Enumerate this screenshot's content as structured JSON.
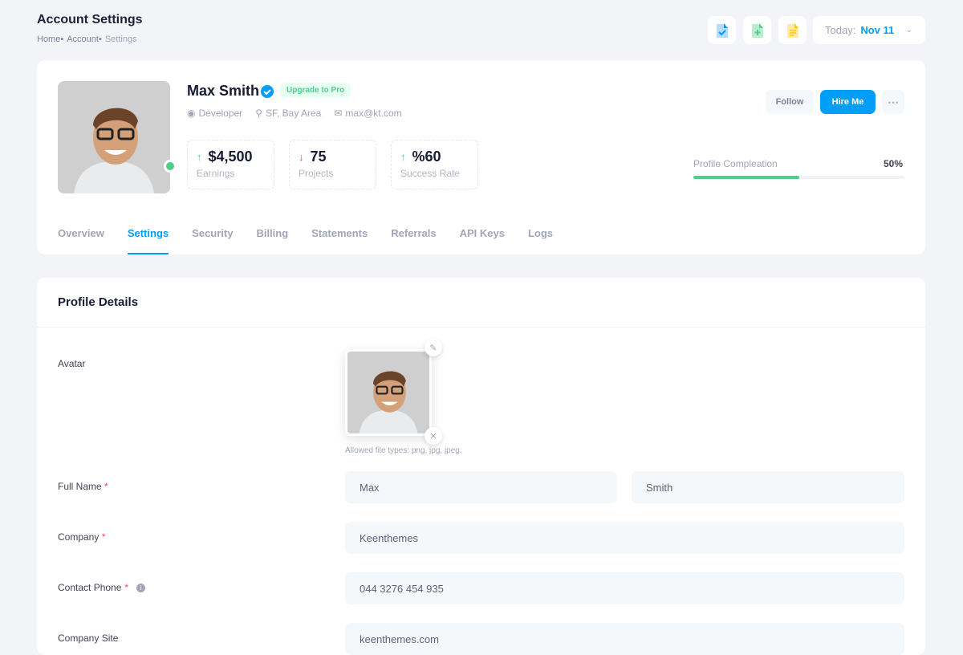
{
  "header": {
    "title": "Account Settings",
    "breadcrumb": [
      "Home•",
      "Account•",
      "Settings"
    ],
    "date_label": "Today:",
    "date_value": "Nov 11"
  },
  "toolbar_icons": [
    "file-check-icon",
    "file-add-icon",
    "file-text-icon"
  ],
  "profile": {
    "name": "Max Smith",
    "badge": "Upgrade to Pro",
    "role": "Developer",
    "location": "SF, Bay Area",
    "email": "max@kt.com",
    "online": true,
    "stats": [
      {
        "value": "$4,500",
        "label": "Earnings",
        "trend": "up"
      },
      {
        "value": "75",
        "label": "Projects",
        "trend": "down"
      },
      {
        "value": "%60",
        "label": "Success Rate",
        "trend": "up"
      }
    ],
    "follow": "Follow",
    "hire": "Hire Me",
    "completion_label": "Profile Compleation",
    "completion_text": "50%",
    "completion": 50
  },
  "tabs": [
    "Overview",
    "Settings",
    "Security",
    "Billing",
    "Statements",
    "Referrals",
    "API Keys",
    "Logs"
  ],
  "active_tab": "Settings",
  "details": {
    "title": "Profile Details",
    "avatar_label": "Avatar",
    "allowed": "Allowed file types: png, jpg, jpeg.",
    "full_name_label": "Full Name",
    "first_name": "Max",
    "last_name": "Smith",
    "company_label": "Company",
    "company": "Keenthemes",
    "phone_label": "Contact Phone",
    "phone": "044 3276 454 935",
    "site_label": "Company Site",
    "site": "keenthemes.com"
  },
  "colors": {
    "primary": "#009ef7",
    "success": "#50cd89",
    "danger": "#f1416c"
  }
}
